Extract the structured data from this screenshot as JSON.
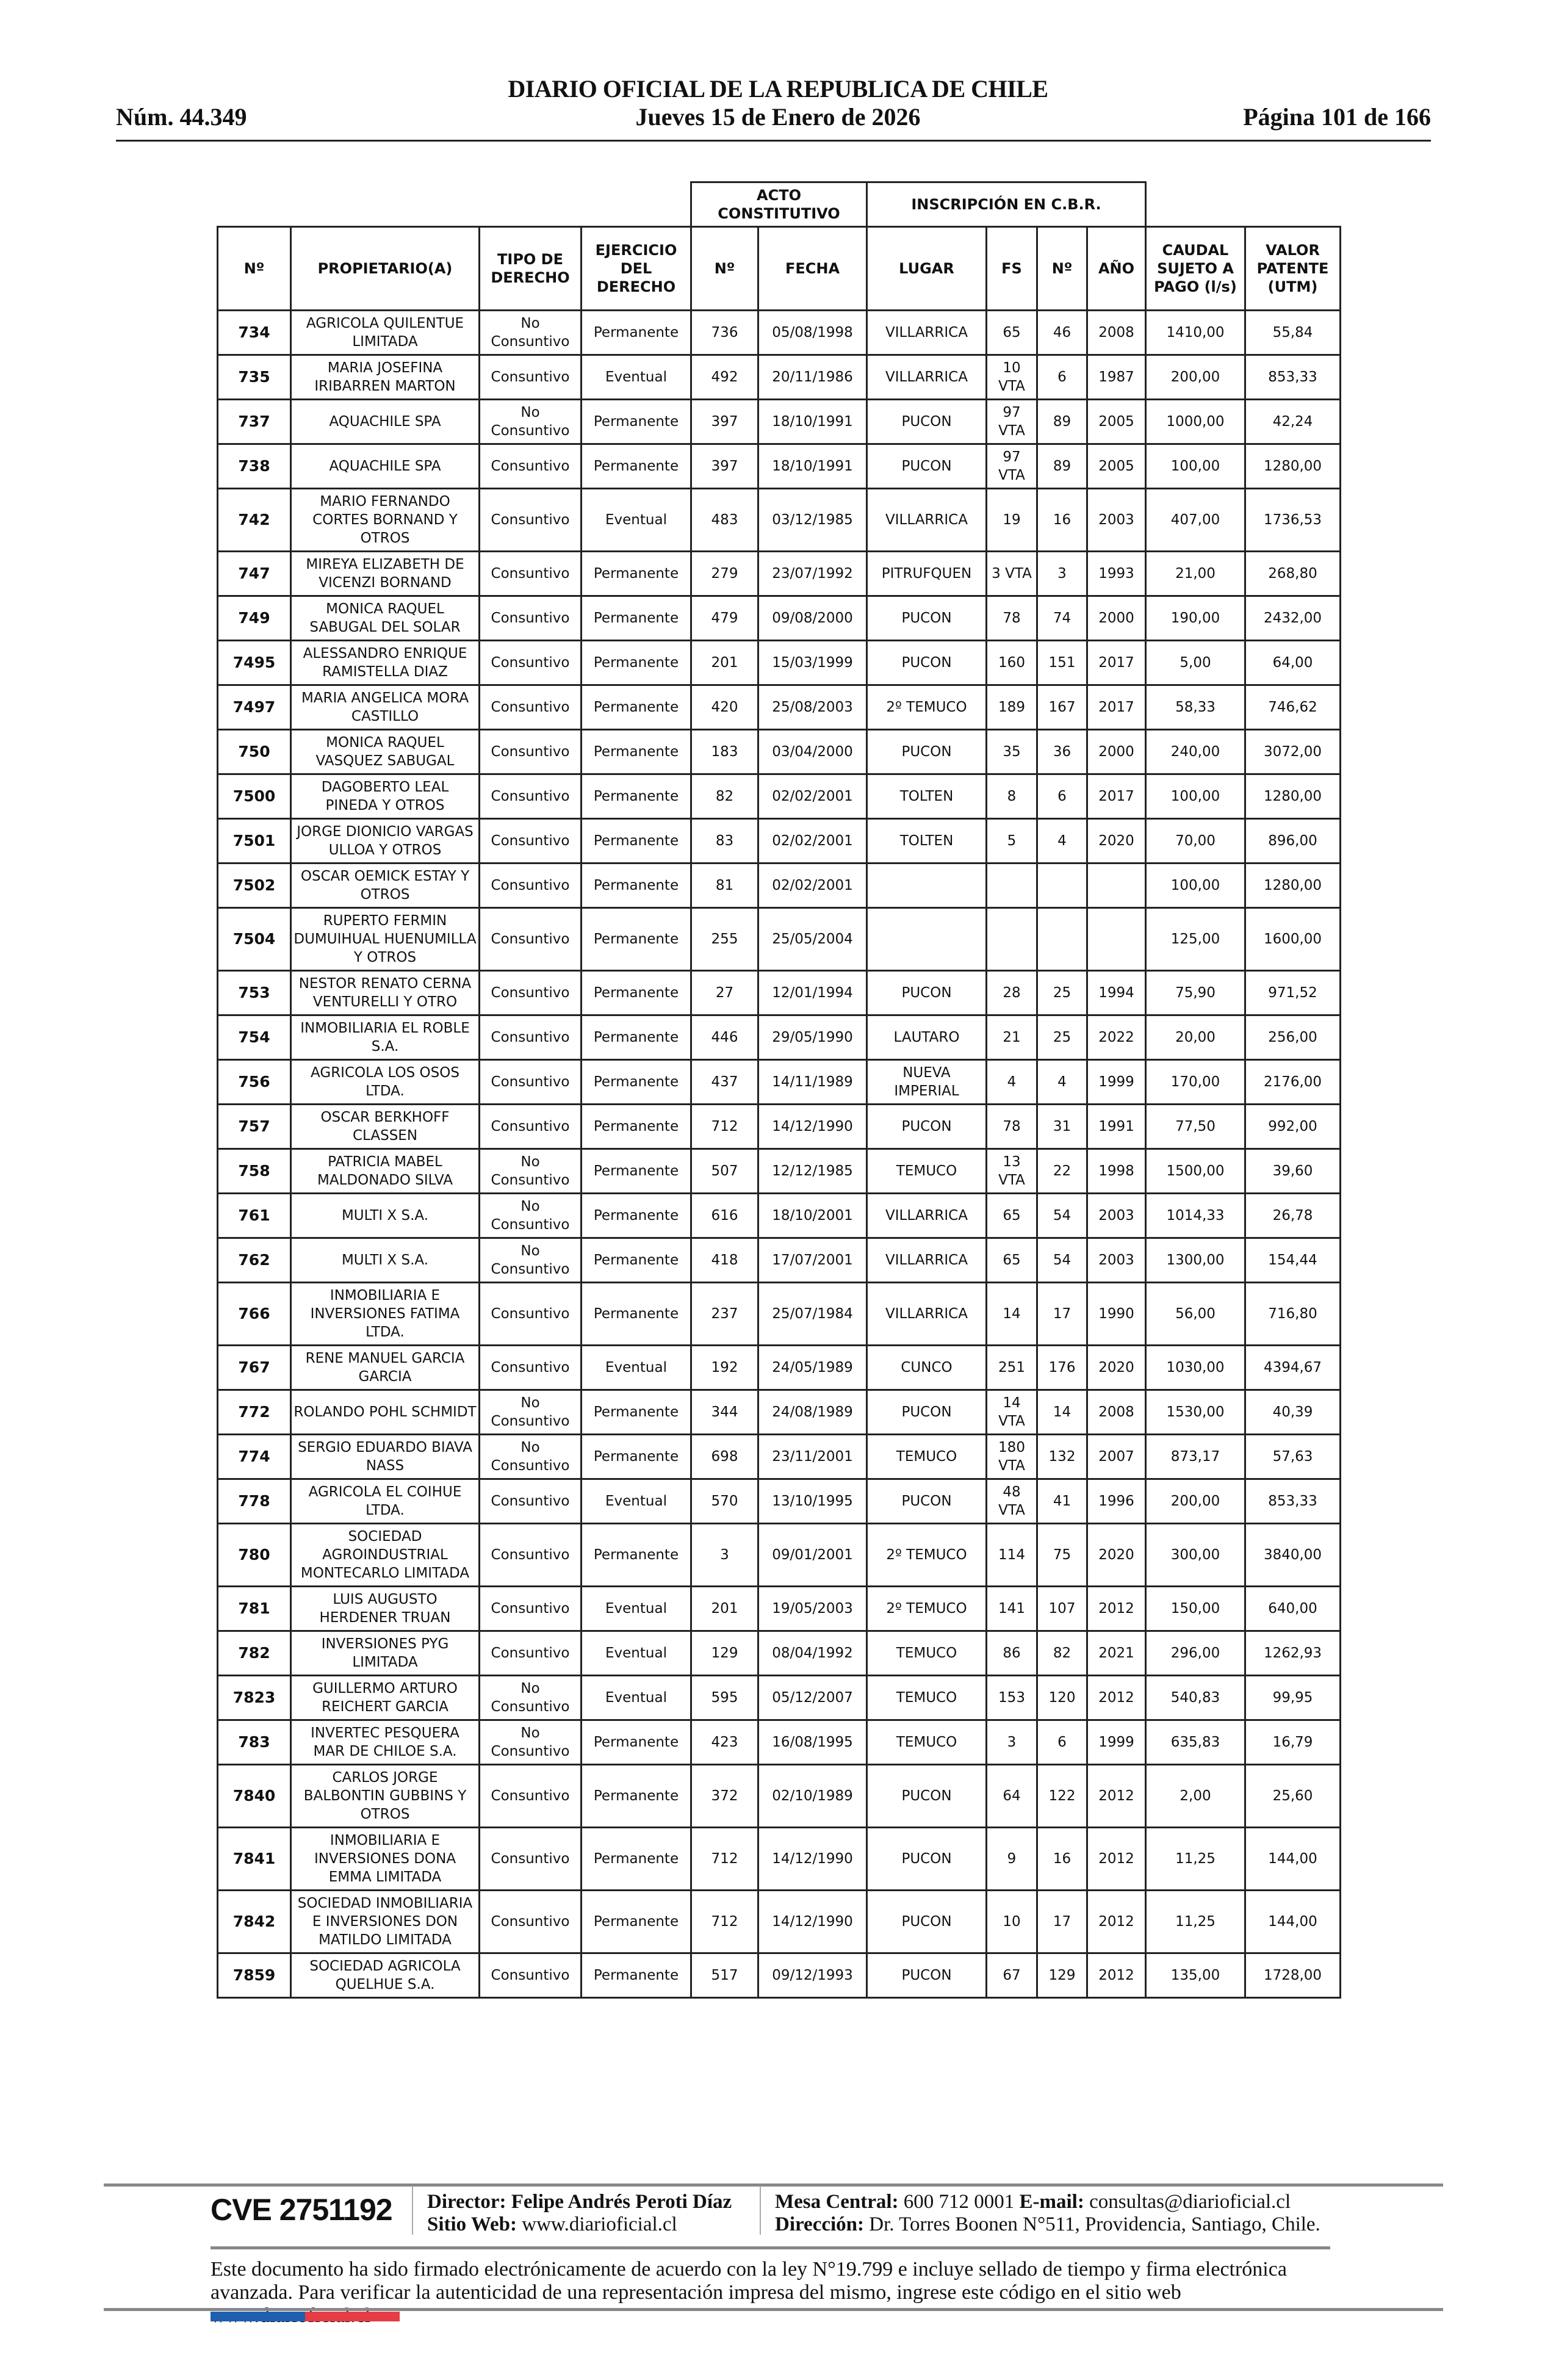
{
  "header": {
    "title": "DIARIO OFICIAL DE LA REPUBLICA DE CHILE",
    "date": "Jueves 15 de Enero de 2026",
    "number": "Núm. 44.349",
    "page": "Página 101 de 166"
  },
  "table": {
    "group_headers": {
      "acto": "ACTO CONSTITUTIVO",
      "inscripcion": "INSCRIPCIÓN EN C.B.R."
    },
    "columns": [
      "Nº",
      "PROPIETARIO(A)",
      "TIPO DE DERECHO",
      "EJERCICIO DEL DERECHO",
      "Nº",
      "FECHA",
      "LUGAR",
      "FS",
      "Nº",
      "AÑO",
      "CAUDAL SUJETO A PAGO (l/s)",
      "VALOR PATENTE (UTM)"
    ],
    "rows": [
      [
        "734",
        "AGRICOLA QUILENTUE LIMITADA",
        "No Consuntivo",
        "Permanente",
        "736",
        "05/08/1998",
        "VILLARRICA",
        "65",
        "46",
        "2008",
        "1410,00",
        "55,84"
      ],
      [
        "735",
        "MARIA JOSEFINA IRIBARREN MARTON",
        "Consuntivo",
        "Eventual",
        "492",
        "20/11/1986",
        "VILLARRICA",
        "10 VTA",
        "6",
        "1987",
        "200,00",
        "853,33"
      ],
      [
        "737",
        "AQUACHILE SPA",
        "No Consuntivo",
        "Permanente",
        "397",
        "18/10/1991",
        "PUCON",
        "97 VTA",
        "89",
        "2005",
        "1000,00",
        "42,24"
      ],
      [
        "738",
        "AQUACHILE SPA",
        "Consuntivo",
        "Permanente",
        "397",
        "18/10/1991",
        "PUCON",
        "97 VTA",
        "89",
        "2005",
        "100,00",
        "1280,00"
      ],
      [
        "742",
        "MARIO FERNANDO CORTES BORNAND Y OTROS",
        "Consuntivo",
        "Eventual",
        "483",
        "03/12/1985",
        "VILLARRICA",
        "19",
        "16",
        "2003",
        "407,00",
        "1736,53"
      ],
      [
        "747",
        "MIREYA ELIZABETH DE VICENZI BORNAND",
        "Consuntivo",
        "Permanente",
        "279",
        "23/07/1992",
        "PITRUFQUEN",
        "3 VTA",
        "3",
        "1993",
        "21,00",
        "268,80"
      ],
      [
        "749",
        "MONICA RAQUEL SABUGAL DEL SOLAR",
        "Consuntivo",
        "Permanente",
        "479",
        "09/08/2000",
        "PUCON",
        "78",
        "74",
        "2000",
        "190,00",
        "2432,00"
      ],
      [
        "7495",
        "ALESSANDRO ENRIQUE RAMISTELLA DIAZ",
        "Consuntivo",
        "Permanente",
        "201",
        "15/03/1999",
        "PUCON",
        "160",
        "151",
        "2017",
        "5,00",
        "64,00"
      ],
      [
        "7497",
        "MARIA ANGELICA MORA CASTILLO",
        "Consuntivo",
        "Permanente",
        "420",
        "25/08/2003",
        "2º TEMUCO",
        "189",
        "167",
        "2017",
        "58,33",
        "746,62"
      ],
      [
        "750",
        "MONICA RAQUEL VASQUEZ SABUGAL",
        "Consuntivo",
        "Permanente",
        "183",
        "03/04/2000",
        "PUCON",
        "35",
        "36",
        "2000",
        "240,00",
        "3072,00"
      ],
      [
        "7500",
        "DAGOBERTO LEAL PINEDA Y OTROS",
        "Consuntivo",
        "Permanente",
        "82",
        "02/02/2001",
        "TOLTEN",
        "8",
        "6",
        "2017",
        "100,00",
        "1280,00"
      ],
      [
        "7501",
        "JORGE DIONICIO VARGAS ULLOA Y OTROS",
        "Consuntivo",
        "Permanente",
        "83",
        "02/02/2001",
        "TOLTEN",
        "5",
        "4",
        "2020",
        "70,00",
        "896,00"
      ],
      [
        "7502",
        "OSCAR OEMICK ESTAY Y OTROS",
        "Consuntivo",
        "Permanente",
        "81",
        "02/02/2001",
        "",
        "",
        "",
        "",
        "100,00",
        "1280,00"
      ],
      [
        "7504",
        "RUPERTO FERMIN DUMUIHUAL HUENUMILLA Y OTROS",
        "Consuntivo",
        "Permanente",
        "255",
        "25/05/2004",
        "",
        "",
        "",
        "",
        "125,00",
        "1600,00"
      ],
      [
        "753",
        "NESTOR RENATO CERNA VENTURELLI Y OTRO",
        "Consuntivo",
        "Permanente",
        "27",
        "12/01/1994",
        "PUCON",
        "28",
        "25",
        "1994",
        "75,90",
        "971,52"
      ],
      [
        "754",
        "INMOBILIARIA EL ROBLE S.A.",
        "Consuntivo",
        "Permanente",
        "446",
        "29/05/1990",
        "LAUTARO",
        "21",
        "25",
        "2022",
        "20,00",
        "256,00"
      ],
      [
        "756",
        "AGRICOLA LOS OSOS LTDA.",
        "Consuntivo",
        "Permanente",
        "437",
        "14/11/1989",
        "NUEVA IMPERIAL",
        "4",
        "4",
        "1999",
        "170,00",
        "2176,00"
      ],
      [
        "757",
        "OSCAR BERKHOFF CLASSEN",
        "Consuntivo",
        "Permanente",
        "712",
        "14/12/1990",
        "PUCON",
        "78",
        "31",
        "1991",
        "77,50",
        "992,00"
      ],
      [
        "758",
        "PATRICIA MABEL MALDONADO SILVA",
        "No Consuntivo",
        "Permanente",
        "507",
        "12/12/1985",
        "TEMUCO",
        "13 VTA",
        "22",
        "1998",
        "1500,00",
        "39,60"
      ],
      [
        "761",
        "MULTI X S.A.",
        "No Consuntivo",
        "Permanente",
        "616",
        "18/10/2001",
        "VILLARRICA",
        "65",
        "54",
        "2003",
        "1014,33",
        "26,78"
      ],
      [
        "762",
        "MULTI X S.A.",
        "No Consuntivo",
        "Permanente",
        "418",
        "17/07/2001",
        "VILLARRICA",
        "65",
        "54",
        "2003",
        "1300,00",
        "154,44"
      ],
      [
        "766",
        "INMOBILIARIA E INVERSIONES FATIMA LTDA.",
        "Consuntivo",
        "Permanente",
        "237",
        "25/07/1984",
        "VILLARRICA",
        "14",
        "17",
        "1990",
        "56,00",
        "716,80"
      ],
      [
        "767",
        "RENE MANUEL GARCIA GARCIA",
        "Consuntivo",
        "Eventual",
        "192",
        "24/05/1989",
        "CUNCO",
        "251",
        "176",
        "2020",
        "1030,00",
        "4394,67"
      ],
      [
        "772",
        "ROLANDO POHL SCHMIDT",
        "No Consuntivo",
        "Permanente",
        "344",
        "24/08/1989",
        "PUCON",
        "14 VTA",
        "14",
        "2008",
        "1530,00",
        "40,39"
      ],
      [
        "774",
        "SERGIO EDUARDO BIAVA NASS",
        "No Consuntivo",
        "Permanente",
        "698",
        "23/11/2001",
        "TEMUCO",
        "180 VTA",
        "132",
        "2007",
        "873,17",
        "57,63"
      ],
      [
        "778",
        "AGRICOLA EL COIHUE LTDA.",
        "Consuntivo",
        "Eventual",
        "570",
        "13/10/1995",
        "PUCON",
        "48 VTA",
        "41",
        "1996",
        "200,00",
        "853,33"
      ],
      [
        "780",
        "SOCIEDAD AGROINDUSTRIAL MONTECARLO LIMITADA",
        "Consuntivo",
        "Permanente",
        "3",
        "09/01/2001",
        "2º TEMUCO",
        "114",
        "75",
        "2020",
        "300,00",
        "3840,00"
      ],
      [
        "781",
        "LUIS AUGUSTO HERDENER TRUAN",
        "Consuntivo",
        "Eventual",
        "201",
        "19/05/2003",
        "2º TEMUCO",
        "141",
        "107",
        "2012",
        "150,00",
        "640,00"
      ],
      [
        "782",
        "INVERSIONES PYG LIMITADA",
        "Consuntivo",
        "Eventual",
        "129",
        "08/04/1992",
        "TEMUCO",
        "86",
        "82",
        "2021",
        "296,00",
        "1262,93"
      ],
      [
        "7823",
        "GUILLERMO ARTURO REICHERT GARCIA",
        "No Consuntivo",
        "Eventual",
        "595",
        "05/12/2007",
        "TEMUCO",
        "153",
        "120",
        "2012",
        "540,83",
        "99,95"
      ],
      [
        "783",
        "INVERTEC PESQUERA MAR DE CHILOE S.A.",
        "No Consuntivo",
        "Permanente",
        "423",
        "16/08/1995",
        "TEMUCO",
        "3",
        "6",
        "1999",
        "635,83",
        "16,79"
      ],
      [
        "7840",
        "CARLOS JORGE BALBONTIN GUBBINS Y OTROS",
        "Consuntivo",
        "Permanente",
        "372",
        "02/10/1989",
        "PUCON",
        "64",
        "122",
        "2012",
        "2,00",
        "25,60"
      ],
      [
        "7841",
        "INMOBILIARIA E INVERSIONES DONA EMMA LIMITADA",
        "Consuntivo",
        "Permanente",
        "712",
        "14/12/1990",
        "PUCON",
        "9",
        "16",
        "2012",
        "11,25",
        "144,00"
      ],
      [
        "7842",
        "SOCIEDAD INMOBILIARIA E INVERSIONES DON MATILDO LIMITADA",
        "Consuntivo",
        "Permanente",
        "712",
        "14/12/1990",
        "PUCON",
        "10",
        "17",
        "2012",
        "11,25",
        "144,00"
      ],
      [
        "7859",
        "SOCIEDAD AGRICOLA QUELHUE S.A.",
        "Consuntivo",
        "Permanente",
        "517",
        "09/12/1993",
        "PUCON",
        "67",
        "129",
        "2012",
        "135,00",
        "1728,00"
      ]
    ]
  },
  "footer": {
    "cve": "CVE 2751192",
    "director_label": "Director:",
    "director_name": "Felipe Andrés Peroti Díaz",
    "web_label": "Sitio Web:",
    "web_value": "www.diarioficial.cl",
    "mesa_label": "Mesa Central:",
    "mesa_value": "600 712 0001",
    "email_label": "E-mail:",
    "email_value": "consultas@diarioficial.cl",
    "address_label": "Dirección:",
    "address_value": "Dr. Torres Boonen N°511, Providencia, Santiago, Chile.",
    "legal_text": "Este documento ha sido firmado electrónicamente de acuerdo con la ley N°19.799 e incluye sellado de tiempo y firma electrónica avanzada. Para verificar la autenticidad de una representación impresa del mismo, ingrese este código en el sitio web www.diarioficial.cl"
  },
  "colors": {
    "flag_blue": "#1f5fb0",
    "flag_red": "#e63c46"
  }
}
